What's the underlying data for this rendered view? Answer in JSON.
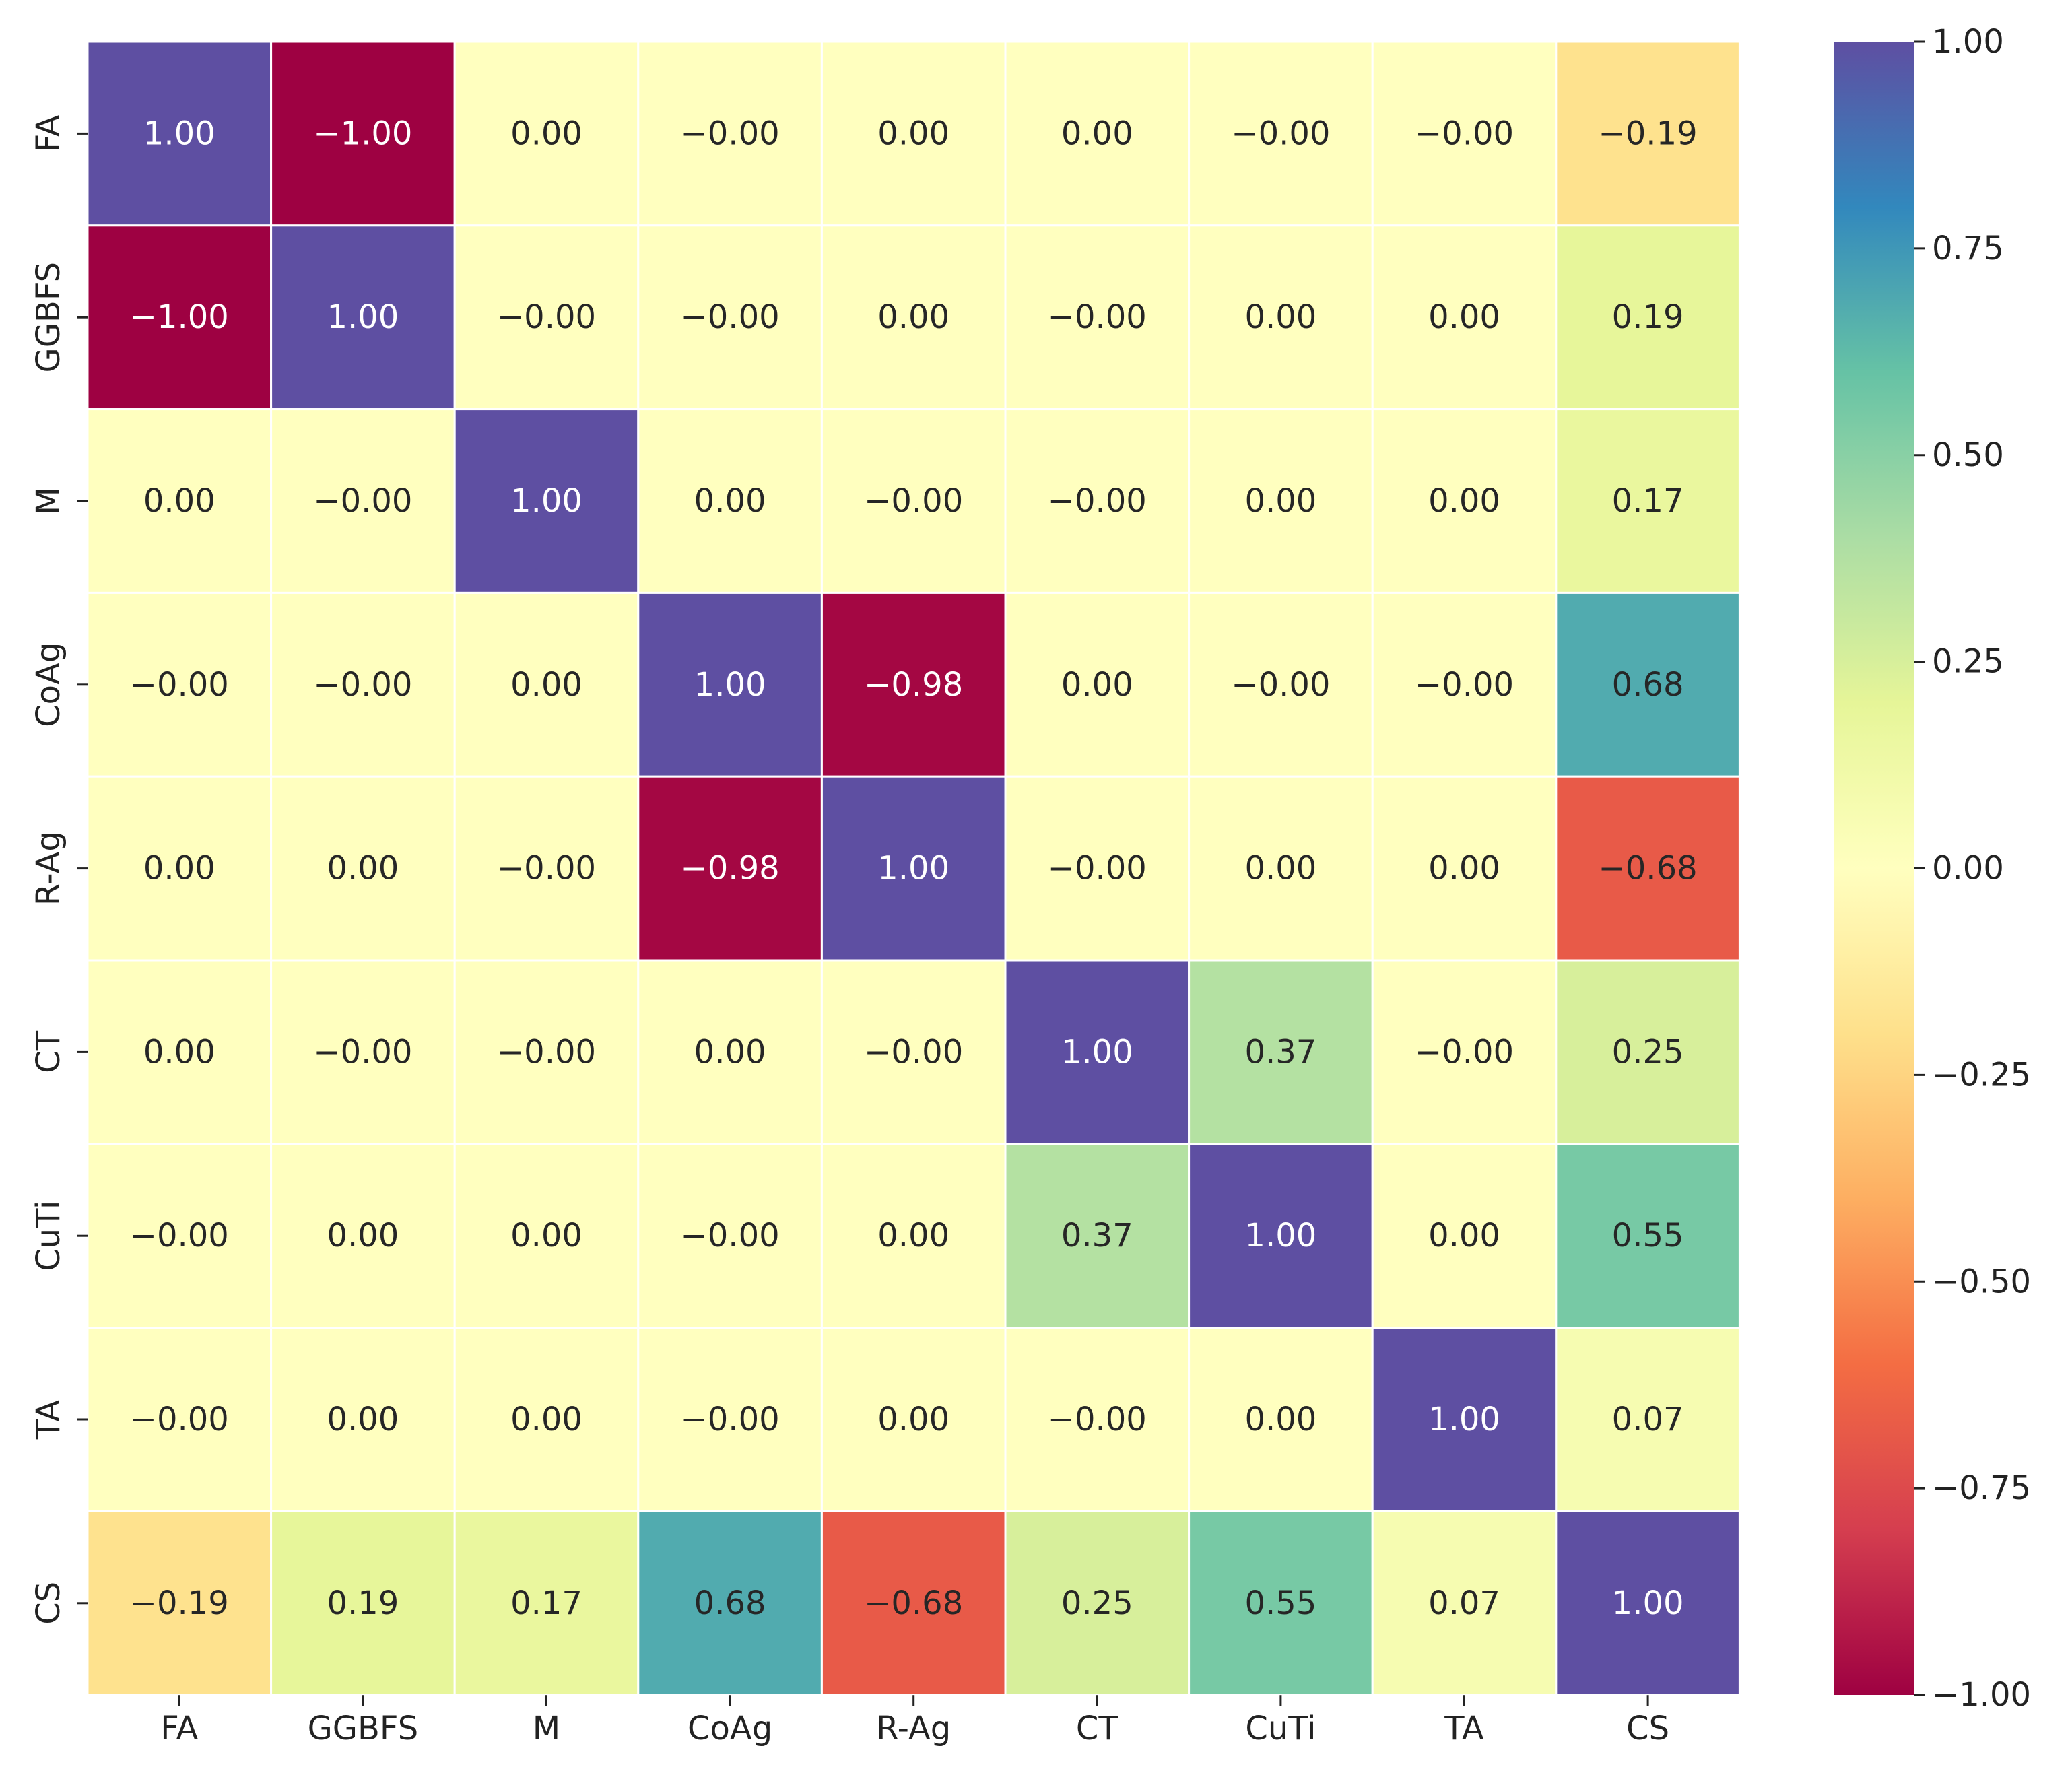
{
  "chart_data": {
    "type": "heatmap",
    "title": "",
    "xlabel": "",
    "ylabel": "",
    "x_labels": [
      "FA",
      "GGBFS",
      "M",
      "CoAg",
      "R-Ag",
      "CT",
      "CuTi",
      "TA",
      "CS"
    ],
    "y_labels": [
      "FA",
      "GGBFS",
      "M",
      "CoAg",
      "R-Ag",
      "CT",
      "CuTi",
      "TA",
      "CS"
    ],
    "values": [
      [
        1.0,
        -1.0,
        0.0,
        -0.0,
        0.0,
        0.0,
        -0.0,
        -0.0,
        -0.19
      ],
      [
        -1.0,
        1.0,
        -0.0,
        -0.0,
        0.0,
        -0.0,
        0.0,
        0.0,
        0.19
      ],
      [
        0.0,
        -0.0,
        1.0,
        0.0,
        -0.0,
        -0.0,
        0.0,
        0.0,
        0.17
      ],
      [
        -0.0,
        -0.0,
        0.0,
        1.0,
        -0.98,
        0.0,
        -0.0,
        -0.0,
        0.68
      ],
      [
        0.0,
        0.0,
        -0.0,
        -0.98,
        1.0,
        -0.0,
        0.0,
        0.0,
        -0.68
      ],
      [
        0.0,
        -0.0,
        -0.0,
        0.0,
        -0.0,
        1.0,
        0.37,
        -0.0,
        0.25
      ],
      [
        -0.0,
        0.0,
        0.0,
        -0.0,
        0.0,
        0.37,
        1.0,
        0.0,
        0.55
      ],
      [
        -0.0,
        0.0,
        0.0,
        -0.0,
        0.0,
        -0.0,
        0.0,
        1.0,
        0.07
      ],
      [
        -0.19,
        0.19,
        0.17,
        0.68,
        -0.68,
        0.25,
        0.55,
        0.07,
        1.0
      ]
    ],
    "cell_text": [
      [
        "1.00",
        "−1.00",
        "0.00",
        "−0.00",
        "0.00",
        "0.00",
        "−0.00",
        "−0.00",
        "−0.19"
      ],
      [
        "−1.00",
        "1.00",
        "−0.00",
        "−0.00",
        "0.00",
        "−0.00",
        "0.00",
        "0.00",
        "0.19"
      ],
      [
        "0.00",
        "−0.00",
        "1.00",
        "0.00",
        "−0.00",
        "−0.00",
        "0.00",
        "0.00",
        "0.17"
      ],
      [
        "−0.00",
        "−0.00",
        "0.00",
        "1.00",
        "−0.98",
        "0.00",
        "−0.00",
        "−0.00",
        "0.68"
      ],
      [
        "0.00",
        "0.00",
        "−0.00",
        "−0.98",
        "1.00",
        "−0.00",
        "0.00",
        "0.00",
        "−0.68"
      ],
      [
        "0.00",
        "−0.00",
        "−0.00",
        "0.00",
        "−0.00",
        "1.00",
        "0.37",
        "−0.00",
        "0.25"
      ],
      [
        "−0.00",
        "0.00",
        "0.00",
        "−0.00",
        "0.00",
        "0.37",
        "1.00",
        "0.00",
        "0.55"
      ],
      [
        "−0.00",
        "0.00",
        "0.00",
        "−0.00",
        "0.00",
        "−0.00",
        "0.00",
        "1.00",
        "0.07"
      ],
      [
        "−0.19",
        "0.19",
        "0.17",
        "0.68",
        "−0.68",
        "0.25",
        "0.55",
        "0.07",
        "1.00"
      ]
    ],
    "colormap": "Spectral",
    "vmin": -1.0,
    "vmax": 1.0,
    "colorbar": {
      "ticks": [
        1.0,
        0.75,
        0.5,
        0.25,
        0.0,
        -0.25,
        -0.5,
        -0.75,
        -1.0
      ],
      "tick_labels": [
        "1.00",
        "0.75",
        "0.50",
        "0.25",
        "0.00",
        "−0.25",
        "−0.50",
        "−0.75",
        "−1.00"
      ],
      "position": "right"
    },
    "colors": {
      "cell_border": "#ffffff",
      "text_dark": "#262626",
      "text_light": "#ffffff",
      "axis": "#222222"
    }
  }
}
